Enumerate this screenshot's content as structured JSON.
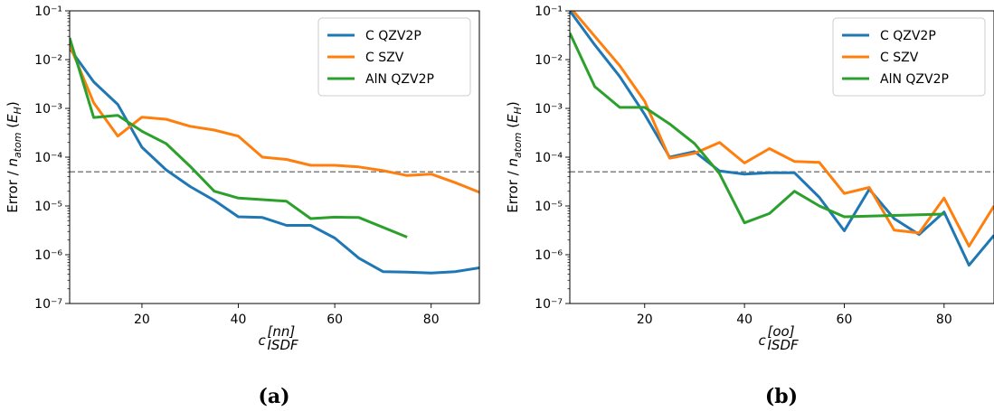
{
  "chart_data": [
    {
      "type": "line",
      "caption": "(a)",
      "xlabel": "c_ISDF^[nn]",
      "xlabel_main": "c",
      "xlabel_sub": "ISDF",
      "xlabel_sup": "[nn]",
      "ylabel": "Error / n_atom (E_H)",
      "xlim": [
        5,
        90
      ],
      "ylim": [
        1e-07,
        0.1
      ],
      "yscale": "log",
      "xticks": [
        20,
        40,
        60,
        80
      ],
      "yticks": [
        -7,
        -6,
        -5,
        -4,
        -3,
        -2,
        -1
      ],
      "threshold": 5e-05,
      "legend": "top-right",
      "series": [
        {
          "name": "C QZV2P",
          "color": "#1f77b4",
          "x": [
            5,
            10,
            15,
            20,
            25,
            30,
            35,
            40,
            45,
            50,
            55,
            60,
            65,
            70,
            75,
            80,
            85,
            90
          ],
          "y": [
            0.017,
            0.0035,
            0.0012,
            0.00016,
            5.5e-05,
            2.5e-05,
            1.3e-05,
            6e-06,
            5.8e-06,
            4e-06,
            4e-06,
            2.2e-06,
            8.5e-07,
            4.5e-07,
            4.4e-07,
            4.2e-07,
            4.5e-07,
            5.4e-07
          ]
        },
        {
          "name": "C SZV",
          "color": "#ff7f0e",
          "x": [
            5,
            10,
            15,
            20,
            25,
            30,
            35,
            40,
            45,
            50,
            55,
            60,
            65,
            70,
            75,
            80,
            85,
            90
          ],
          "y": [
            0.02,
            0.0013,
            0.00027,
            0.00066,
            0.0006,
            0.00043,
            0.00036,
            0.00027,
            0.0001,
            9e-05,
            6.8e-05,
            6.8e-05,
            6.3e-05,
            5.3e-05,
            4.2e-05,
            4.5e-05,
            3e-05,
            1.9e-05
          ]
        },
        {
          "name": "AlN QZV2P",
          "color": "#2ca02c",
          "x": [
            5,
            10,
            15,
            20,
            25,
            30,
            35,
            40,
            45,
            50,
            55,
            60,
            65,
            75
          ],
          "y": [
            0.028,
            0.00065,
            0.00072,
            0.00034,
            0.00019,
            6.5e-05,
            2e-05,
            1.45e-05,
            1.35e-05,
            1.25e-05,
            5.5e-06,
            5.9e-06,
            5.8e-06,
            2.3e-06
          ]
        }
      ]
    },
    {
      "type": "line",
      "caption": "(b)",
      "xlabel": "c_ISDF^[oo]",
      "xlabel_main": "c",
      "xlabel_sub": "ISDF",
      "xlabel_sup": "[oo]",
      "ylabel": "Error / n_atom (E_H)",
      "xlim": [
        5,
        90
      ],
      "ylim": [
        1e-07,
        0.1
      ],
      "yscale": "log",
      "xticks": [
        20,
        40,
        60,
        80
      ],
      "yticks": [
        -7,
        -6,
        -5,
        -4,
        -3,
        -2,
        -1
      ],
      "threshold": 5e-05,
      "legend": "top-right",
      "series": [
        {
          "name": "C QZV2P",
          "color": "#1f77b4",
          "x": [
            5,
            10,
            15,
            20,
            25,
            30,
            35,
            40,
            45,
            50,
            55,
            60,
            65,
            70,
            75,
            80,
            85,
            90
          ],
          "y": [
            0.1,
            0.02,
            0.0045,
            0.00075,
            0.0001,
            0.00013,
            5.2e-05,
            4.5e-05,
            4.8e-05,
            4.8e-05,
            1.5e-05,
            3.1e-06,
            2.2e-05,
            5.5e-06,
            2.6e-06,
            7.5e-06,
            6.1e-07,
            2.5e-06
          ]
        },
        {
          "name": "C SZV",
          "color": "#ff7f0e",
          "x": [
            5,
            10,
            15,
            20,
            25,
            30,
            35,
            40,
            45,
            50,
            55,
            60,
            65,
            70,
            75,
            80,
            85,
            90
          ],
          "y": [
            0.12,
            0.03,
            0.0075,
            0.0014,
            9.5e-05,
            0.00012,
            0.0002,
            7.6e-05,
            0.00015,
            8.2e-05,
            7.8e-05,
            1.8e-05,
            2.4e-05,
            3.2e-06,
            2.8e-06,
            1.45e-05,
            1.5e-06,
            1e-05
          ]
        },
        {
          "name": "AlN QZV2P",
          "color": "#2ca02c",
          "x": [
            5,
            10,
            15,
            20,
            25,
            30,
            35,
            40,
            45,
            50,
            55,
            60,
            65,
            70,
            75,
            80
          ],
          "y": [
            0.035,
            0.0028,
            0.00105,
            0.00105,
            0.00048,
            0.00019,
            4.6e-05,
            4.5e-06,
            7e-06,
            2e-05,
            1e-05,
            6e-06,
            6.2e-06,
            6.4e-06,
            6.6e-06,
            6.8e-06
          ]
        }
      ]
    }
  ]
}
